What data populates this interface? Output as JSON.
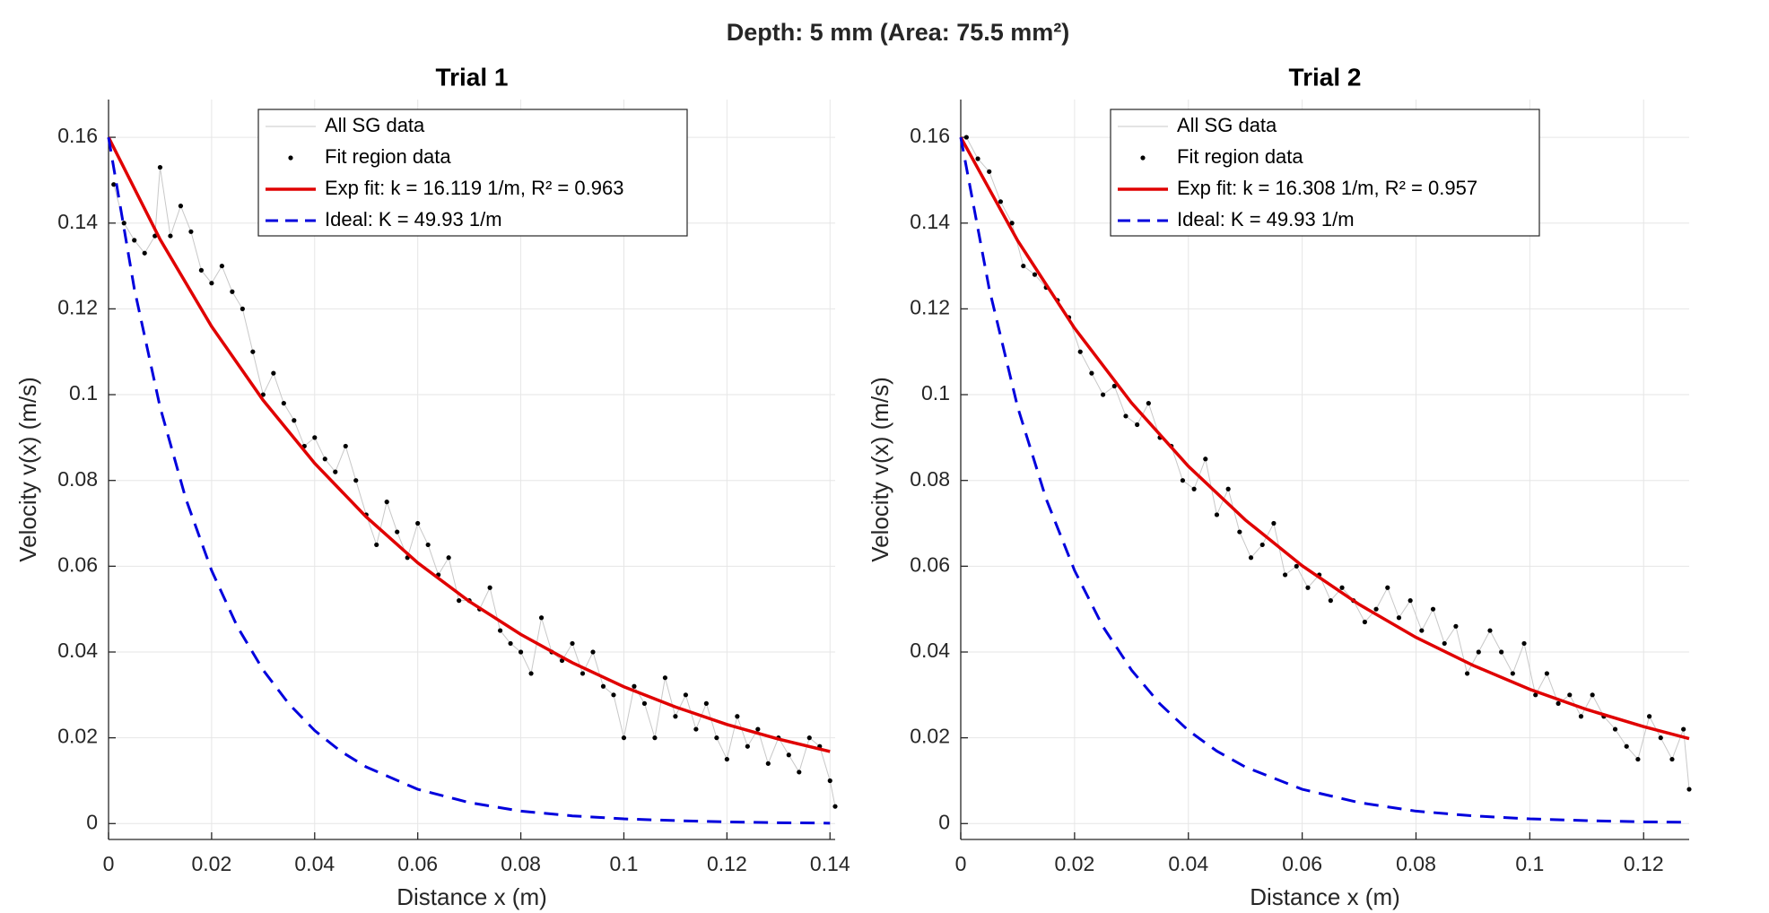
{
  "title": "Depth: 5 mm (Area: 75.5 mm²)",
  "chart_data": [
    {
      "type": "line",
      "title": "Trial 1",
      "xlabel": "Distance x (m)",
      "ylabel": "Velocity v(x) (m/s)",
      "xlim": [
        0,
        0.141
      ],
      "ylim": [
        -0.0037,
        0.1688
      ],
      "xticks": [
        0,
        0.02,
        0.04,
        0.06,
        0.08,
        0.1,
        0.12,
        0.14
      ],
      "yticks": [
        0,
        0.02,
        0.04,
        0.06,
        0.08,
        0.1,
        0.12,
        0.14,
        0.16
      ],
      "grid": true,
      "legend": "north",
      "series": [
        {
          "name": "All SG data",
          "color": "#c8c8c8",
          "line": "solid",
          "marker": "none",
          "x": [
            0.001,
            0.003,
            0.005,
            0.007,
            0.009,
            0.01,
            0.012,
            0.014,
            0.016,
            0.018,
            0.02,
            0.022,
            0.024,
            0.026,
            0.028,
            0.03,
            0.032,
            0.034,
            0.036,
            0.038,
            0.04,
            0.042,
            0.044,
            0.046,
            0.048,
            0.05,
            0.052,
            0.054,
            0.056,
            0.058,
            0.06,
            0.062,
            0.064,
            0.066,
            0.068,
            0.07,
            0.072,
            0.074,
            0.076,
            0.078,
            0.08,
            0.082,
            0.084,
            0.086,
            0.088,
            0.09,
            0.092,
            0.094,
            0.096,
            0.098,
            0.1,
            0.102,
            0.104,
            0.106,
            0.108,
            0.11,
            0.112,
            0.114,
            0.116,
            0.118,
            0.12,
            0.122,
            0.124,
            0.126,
            0.128,
            0.13,
            0.132,
            0.134,
            0.136,
            0.138,
            0.14,
            0.141
          ],
          "values": [
            0.149,
            0.14,
            0.136,
            0.133,
            0.137,
            0.153,
            0.137,
            0.144,
            0.138,
            0.129,
            0.126,
            0.13,
            0.124,
            0.12,
            0.11,
            0.1,
            0.105,
            0.098,
            0.094,
            0.088,
            0.09,
            0.085,
            0.082,
            0.088,
            0.08,
            0.072,
            0.065,
            0.075,
            0.068,
            0.062,
            0.07,
            0.065,
            0.058,
            0.062,
            0.052,
            0.052,
            0.05,
            0.055,
            0.045,
            0.042,
            0.04,
            0.035,
            0.048,
            0.04,
            0.038,
            0.042,
            0.035,
            0.04,
            0.032,
            0.03,
            0.02,
            0.032,
            0.028,
            0.02,
            0.034,
            0.025,
            0.03,
            0.022,
            0.028,
            0.02,
            0.015,
            0.025,
            0.018,
            0.022,
            0.014,
            0.02,
            0.016,
            0.012,
            0.02,
            0.018,
            0.01,
            0.004
          ]
        },
        {
          "name": "Fit region data",
          "color": "#000000",
          "line": "none",
          "marker": "dot",
          "x": [
            0.001,
            0.003,
            0.005,
            0.007,
            0.009,
            0.01,
            0.012,
            0.014,
            0.016,
            0.018,
            0.02,
            0.022,
            0.024,
            0.026,
            0.028,
            0.03,
            0.032,
            0.034,
            0.036,
            0.038,
            0.04,
            0.042,
            0.044,
            0.046,
            0.048,
            0.05,
            0.052,
            0.054,
            0.056,
            0.058,
            0.06,
            0.062,
            0.064,
            0.066,
            0.068,
            0.07,
            0.072,
            0.074,
            0.076,
            0.078,
            0.08,
            0.082,
            0.084,
            0.086,
            0.088,
            0.09,
            0.092,
            0.094,
            0.096,
            0.098,
            0.1,
            0.102,
            0.104,
            0.106,
            0.108,
            0.11,
            0.112,
            0.114,
            0.116,
            0.118,
            0.12,
            0.122,
            0.124,
            0.126,
            0.128,
            0.13,
            0.132,
            0.134,
            0.136,
            0.138,
            0.14,
            0.141
          ],
          "values": [
            0.149,
            0.14,
            0.136,
            0.133,
            0.137,
            0.153,
            0.137,
            0.144,
            0.138,
            0.129,
            0.126,
            0.13,
            0.124,
            0.12,
            0.11,
            0.1,
            0.105,
            0.098,
            0.094,
            0.088,
            0.09,
            0.085,
            0.082,
            0.088,
            0.08,
            0.072,
            0.065,
            0.075,
            0.068,
            0.062,
            0.07,
            0.065,
            0.058,
            0.062,
            0.052,
            0.052,
            0.05,
            0.055,
            0.045,
            0.042,
            0.04,
            0.035,
            0.048,
            0.04,
            0.038,
            0.042,
            0.035,
            0.04,
            0.032,
            0.03,
            0.02,
            0.032,
            0.028,
            0.02,
            0.034,
            0.025,
            0.03,
            0.022,
            0.028,
            0.02,
            0.015,
            0.025,
            0.018,
            0.022,
            0.014,
            0.02,
            0.016,
            0.012,
            0.02,
            0.018,
            0.01,
            0.004
          ]
        },
        {
          "name": "Exp fit: k = 16.119 1/m, R² = 0.963",
          "color": "#e00000",
          "line": "solid",
          "marker": "none",
          "x": [
            0,
            0.01,
            0.02,
            0.03,
            0.04,
            0.05,
            0.06,
            0.07,
            0.08,
            0.09,
            0.1,
            0.11,
            0.12,
            0.13,
            0.14
          ],
          "values": [
            0.16,
            0.1362,
            0.1159,
            0.0987,
            0.084,
            0.0715,
            0.0608,
            0.0518,
            0.0441,
            0.0375,
            0.0319,
            0.0272,
            0.0231,
            0.0197,
            0.0168
          ]
        },
        {
          "name": "Ideal: K = 49.93 1/m",
          "color": "#0000dd",
          "line": "dashed",
          "marker": "none",
          "x": [
            0,
            0.005,
            0.01,
            0.015,
            0.02,
            0.025,
            0.03,
            0.035,
            0.04,
            0.045,
            0.05,
            0.06,
            0.07,
            0.08,
            0.09,
            0.1,
            0.11,
            0.12,
            0.13,
            0.14
          ],
          "values": [
            0.16,
            0.1247,
            0.0971,
            0.0757,
            0.059,
            0.0459,
            0.0358,
            0.0279,
            0.0217,
            0.0169,
            0.0132,
            0.008,
            0.0049,
            0.0029,
            0.0018,
            0.0011,
            0.0007,
            0.0004,
            0.0002,
            0.0001
          ]
        }
      ]
    },
    {
      "type": "line",
      "title": "Trial 2",
      "xlabel": "Distance x (m)",
      "ylabel": "Velocity v(x) (m/s)",
      "xlim": [
        0,
        0.128
      ],
      "ylim": [
        -0.0037,
        0.1688
      ],
      "xticks": [
        0,
        0.02,
        0.04,
        0.06,
        0.08,
        0.1,
        0.12
      ],
      "yticks": [
        0,
        0.02,
        0.04,
        0.06,
        0.08,
        0.1,
        0.12,
        0.14,
        0.16
      ],
      "grid": true,
      "legend": "north",
      "series": [
        {
          "name": "All SG data",
          "color": "#c8c8c8",
          "line": "solid",
          "marker": "none",
          "x": [
            0.001,
            0.003,
            0.005,
            0.007,
            0.009,
            0.011,
            0.013,
            0.015,
            0.017,
            0.019,
            0.021,
            0.023,
            0.025,
            0.027,
            0.029,
            0.031,
            0.033,
            0.035,
            0.037,
            0.039,
            0.041,
            0.043,
            0.045,
            0.047,
            0.049,
            0.051,
            0.053,
            0.055,
            0.057,
            0.059,
            0.061,
            0.063,
            0.065,
            0.067,
            0.069,
            0.071,
            0.073,
            0.075,
            0.077,
            0.079,
            0.081,
            0.083,
            0.085,
            0.087,
            0.089,
            0.091,
            0.093,
            0.095,
            0.097,
            0.099,
            0.101,
            0.103,
            0.105,
            0.107,
            0.109,
            0.111,
            0.113,
            0.115,
            0.117,
            0.119,
            0.121,
            0.123,
            0.125,
            0.127,
            0.128
          ],
          "values": [
            0.16,
            0.155,
            0.152,
            0.145,
            0.14,
            0.13,
            0.128,
            0.125,
            0.122,
            0.118,
            0.11,
            0.105,
            0.1,
            0.102,
            0.095,
            0.093,
            0.098,
            0.09,
            0.088,
            0.08,
            0.078,
            0.085,
            0.072,
            0.078,
            0.068,
            0.062,
            0.065,
            0.07,
            0.058,
            0.06,
            0.055,
            0.058,
            0.052,
            0.055,
            0.052,
            0.047,
            0.05,
            0.055,
            0.048,
            0.052,
            0.045,
            0.05,
            0.042,
            0.046,
            0.035,
            0.04,
            0.045,
            0.04,
            0.035,
            0.042,
            0.03,
            0.035,
            0.028,
            0.03,
            0.025,
            0.03,
            0.025,
            0.022,
            0.018,
            0.015,
            0.025,
            0.02,
            0.015,
            0.022,
            0.008
          ]
        },
        {
          "name": "Fit region data",
          "color": "#000000",
          "line": "none",
          "marker": "dot",
          "x": [
            0.001,
            0.003,
            0.005,
            0.007,
            0.009,
            0.011,
            0.013,
            0.015,
            0.017,
            0.019,
            0.021,
            0.023,
            0.025,
            0.027,
            0.029,
            0.031,
            0.033,
            0.035,
            0.037,
            0.039,
            0.041,
            0.043,
            0.045,
            0.047,
            0.049,
            0.051,
            0.053,
            0.055,
            0.057,
            0.059,
            0.061,
            0.063,
            0.065,
            0.067,
            0.069,
            0.071,
            0.073,
            0.075,
            0.077,
            0.079,
            0.081,
            0.083,
            0.085,
            0.087,
            0.089,
            0.091,
            0.093,
            0.095,
            0.097,
            0.099,
            0.101,
            0.103,
            0.105,
            0.107,
            0.109,
            0.111,
            0.113,
            0.115,
            0.117,
            0.119,
            0.121,
            0.123,
            0.125,
            0.127,
            0.128
          ],
          "values": [
            0.16,
            0.155,
            0.152,
            0.145,
            0.14,
            0.13,
            0.128,
            0.125,
            0.122,
            0.118,
            0.11,
            0.105,
            0.1,
            0.102,
            0.095,
            0.093,
            0.098,
            0.09,
            0.088,
            0.08,
            0.078,
            0.085,
            0.072,
            0.078,
            0.068,
            0.062,
            0.065,
            0.07,
            0.058,
            0.06,
            0.055,
            0.058,
            0.052,
            0.055,
            0.052,
            0.047,
            0.05,
            0.055,
            0.048,
            0.052,
            0.045,
            0.05,
            0.042,
            0.046,
            0.035,
            0.04,
            0.045,
            0.04,
            0.035,
            0.042,
            0.03,
            0.035,
            0.028,
            0.03,
            0.025,
            0.03,
            0.025,
            0.022,
            0.018,
            0.015,
            0.025,
            0.02,
            0.015,
            0.022,
            0.008
          ]
        },
        {
          "name": "Exp fit: k = 16.308 1/m, R² = 0.957",
          "color": "#e00000",
          "line": "solid",
          "marker": "none",
          "x": [
            0,
            0.01,
            0.02,
            0.03,
            0.04,
            0.05,
            0.06,
            0.07,
            0.08,
            0.09,
            0.1,
            0.11,
            0.12,
            0.128
          ],
          "values": [
            0.16,
            0.1359,
            0.1155,
            0.0981,
            0.0833,
            0.0708,
            0.0601,
            0.0511,
            0.0434,
            0.0369,
            0.0313,
            0.0266,
            0.0226,
            0.0198
          ]
        },
        {
          "name": "Ideal: K = 49.93 1/m",
          "color": "#0000dd",
          "line": "dashed",
          "marker": "none",
          "x": [
            0,
            0.005,
            0.01,
            0.015,
            0.02,
            0.025,
            0.03,
            0.035,
            0.04,
            0.045,
            0.05,
            0.06,
            0.07,
            0.08,
            0.09,
            0.1,
            0.11,
            0.12,
            0.128
          ],
          "values": [
            0.16,
            0.1247,
            0.0971,
            0.0757,
            0.059,
            0.0459,
            0.0358,
            0.0279,
            0.0217,
            0.0169,
            0.0132,
            0.008,
            0.0049,
            0.0029,
            0.0018,
            0.0011,
            0.0007,
            0.0004,
            0.0003
          ]
        }
      ]
    }
  ]
}
